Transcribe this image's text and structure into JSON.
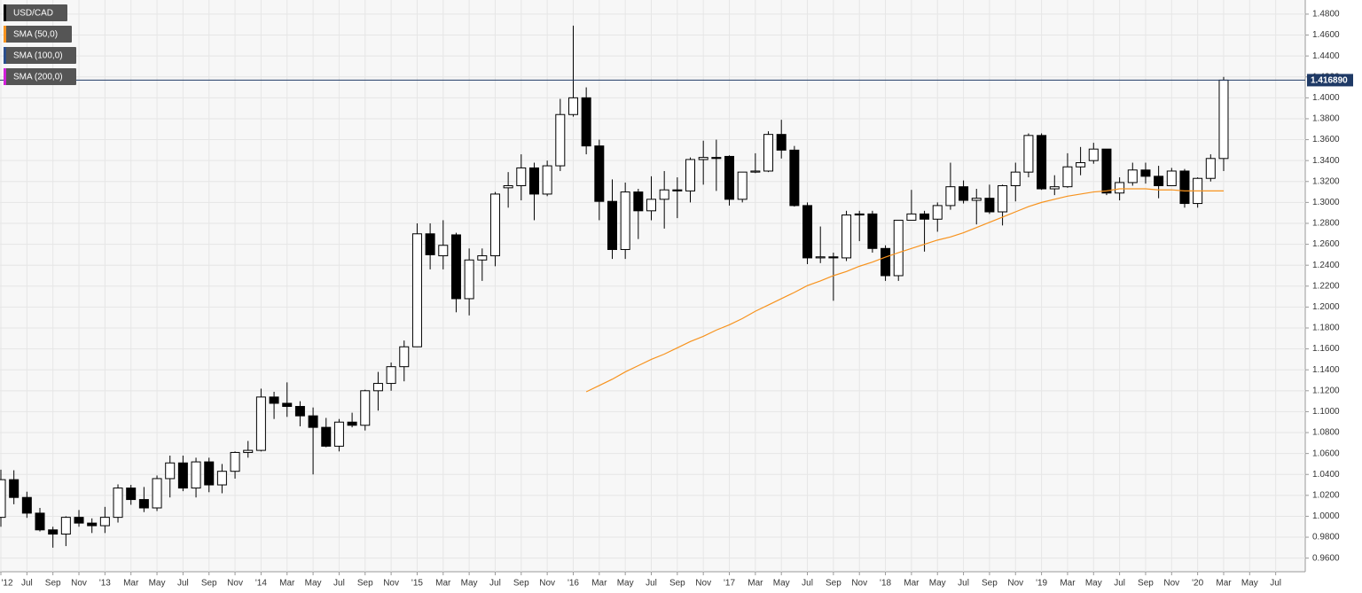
{
  "chart_data": {
    "type": "candlestick",
    "categories": [
      "'12",
      null,
      "Jul",
      null,
      "Sep",
      null,
      "Nov",
      null,
      "'13",
      null,
      "Mar",
      null,
      "May",
      null,
      "Jul",
      null,
      "Sep",
      null,
      "Nov",
      null,
      "'14",
      null,
      "Mar",
      null,
      "May",
      null,
      "Jul",
      null,
      "Sep",
      null,
      "Nov",
      null,
      "'15",
      null,
      "Mar",
      null,
      "May",
      null,
      "Jul",
      null,
      "Sep",
      null,
      "Nov",
      null,
      "'16",
      null,
      "Mar",
      null,
      "May",
      null,
      "Jul",
      null,
      "Sep",
      null,
      "Nov",
      null,
      "'17",
      null,
      "Mar",
      null,
      "May",
      null,
      "Jul",
      null,
      "Sep",
      null,
      "Nov",
      null,
      "'18",
      null,
      "Mar",
      null,
      "May",
      null,
      "Jul",
      null,
      "Sep",
      null,
      "Nov",
      null,
      "'19",
      null,
      "Mar",
      null,
      "May",
      null,
      "Jul",
      null,
      "Sep",
      null,
      "Nov",
      null,
      "'20",
      null,
      "Mar",
      null,
      "May",
      null,
      "Jul"
    ],
    "series": [
      {
        "name": "USD/CAD",
        "color": "#000000",
        "open": [
          0.999,
          1.035,
          1.018,
          1.003,
          0.987,
          0.983,
          0.999,
          0.9935,
          0.991,
          0.999,
          1.027,
          1.016,
          1.008,
          1.036,
          1.051,
          1.027,
          1.052,
          1.03,
          1.043,
          1.061,
          1.063,
          1.114,
          1.108,
          1.105,
          1.096,
          1.085,
          1.067,
          1.09,
          1.087,
          1.12,
          1.127,
          1.143,
          1.162,
          1.27,
          1.249,
          1.269,
          1.208,
          1.245,
          1.249,
          1.314,
          1.316,
          1.333,
          1.308,
          1.335,
          1.384,
          1.4,
          1.354,
          1.301,
          1.255,
          1.31,
          1.292,
          1.303,
          1.312,
          1.311,
          1.341,
          1.343,
          1.344,
          1.303,
          1.329,
          1.33,
          1.365,
          1.35,
          1.297,
          1.247,
          1.248,
          1.247,
          1.289,
          1.289,
          1.256,
          1.23,
          1.283,
          1.289,
          1.284,
          1.297,
          1.315,
          1.302,
          1.304,
          1.291,
          1.316,
          1.329,
          1.364,
          1.313,
          1.315,
          1.334,
          1.34,
          1.351,
          1.309,
          1.319,
          1.331,
          1.325,
          1.316,
          1.33,
          1.299,
          1.323,
          1.342,
          null,
          null,
          null,
          null
        ],
        "high": [
          1.0445,
          1.044,
          1.0235,
          1.008,
          0.99,
          1.0,
          1.006,
          0.998,
          1.009,
          1.0305,
          1.03,
          1.028,
          1.039,
          1.058,
          1.058,
          1.056,
          1.056,
          1.05,
          1.062,
          1.072,
          1.122,
          1.119,
          1.128,
          1.11,
          1.104,
          1.094,
          1.093,
          1.099,
          1.121,
          1.138,
          1.147,
          1.168,
          1.28,
          1.28,
          1.283,
          1.271,
          1.256,
          1.256,
          1.31,
          1.329,
          1.346,
          1.338,
          1.34,
          1.399,
          1.469,
          1.41,
          1.36,
          1.322,
          1.319,
          1.313,
          1.325,
          1.33,
          1.324,
          1.343,
          1.359,
          1.36,
          1.345,
          1.329,
          1.347,
          1.368,
          1.379,
          1.354,
          1.3,
          1.277,
          1.252,
          1.292,
          1.292,
          1.292,
          1.259,
          1.283,
          1.312,
          1.292,
          1.3,
          1.338,
          1.321,
          1.313,
          1.317,
          1.317,
          1.338,
          1.366,
          1.366,
          1.326,
          1.347,
          1.353,
          1.357,
          1.351,
          1.324,
          1.338,
          1.338,
          1.335,
          1.333,
          1.332,
          1.324,
          1.346,
          1.42,
          null,
          null,
          null,
          null
        ],
        "low": [
          0.99,
          1.0115,
          0.9985,
          0.9855,
          0.97,
          0.9715,
          0.99,
          0.984,
          0.984,
          0.994,
          1.011,
          1.004,
          1.005,
          1.018,
          1.024,
          1.018,
          1.023,
          1.022,
          1.036,
          1.056,
          1.062,
          1.093,
          1.095,
          1.086,
          1.04,
          1.066,
          1.062,
          1.085,
          1.082,
          1.101,
          1.12,
          1.129,
          1.162,
          1.236,
          1.236,
          1.195,
          1.192,
          1.225,
          1.239,
          1.295,
          1.302,
          1.283,
          1.306,
          1.33,
          1.382,
          1.346,
          1.283,
          1.246,
          1.246,
          1.265,
          1.283,
          1.275,
          1.285,
          1.3,
          1.317,
          1.311,
          1.297,
          1.3,
          1.328,
          1.329,
          1.342,
          1.296,
          1.241,
          1.242,
          1.206,
          1.244,
          1.263,
          1.252,
          1.225,
          1.225,
          1.283,
          1.253,
          1.272,
          1.293,
          1.299,
          1.279,
          1.289,
          1.278,
          1.301,
          1.324,
          1.312,
          1.307,
          1.314,
          1.326,
          1.337,
          1.307,
          1.302,
          1.316,
          1.318,
          1.304,
          1.316,
          1.295,
          1.295,
          1.32,
          1.33,
          null,
          null,
          null,
          null
        ],
        "close": [
          1.035,
          1.018,
          1.003,
          0.987,
          0.983,
          0.999,
          0.9935,
          0.991,
          0.999,
          1.027,
          1.016,
          1.008,
          1.036,
          1.051,
          1.027,
          1.052,
          1.03,
          1.043,
          1.061,
          1.063,
          1.114,
          1.108,
          1.105,
          1.096,
          1.085,
          1.067,
          1.09,
          1.087,
          1.12,
          1.127,
          1.143,
          1.162,
          1.27,
          1.25,
          1.259,
          1.208,
          1.245,
          1.249,
          1.308,
          1.316,
          1.333,
          1.308,
          1.335,
          1.384,
          1.4,
          1.354,
          1.301,
          1.255,
          1.31,
          1.292,
          1.303,
          1.312,
          1.311,
          1.341,
          1.343,
          1.342,
          1.303,
          1.329,
          1.33,
          1.365,
          1.35,
          1.297,
          1.247,
          1.248,
          1.247,
          1.288,
          1.288,
          1.256,
          1.23,
          1.283,
          1.289,
          1.284,
          1.297,
          1.315,
          1.302,
          1.304,
          1.291,
          1.316,
          1.329,
          1.364,
          1.313,
          1.315,
          1.334,
          1.338,
          1.351,
          1.309,
          1.319,
          1.331,
          1.325,
          1.316,
          1.33,
          1.299,
          1.323,
          1.342,
          1.4169,
          null,
          null,
          null,
          null
        ]
      },
      {
        "name": "SMA (50,0)",
        "color": "#f7931e",
        "values": [
          null,
          null,
          null,
          null,
          null,
          null,
          null,
          null,
          null,
          null,
          null,
          null,
          null,
          null,
          null,
          null,
          null,
          null,
          null,
          null,
          null,
          null,
          null,
          null,
          null,
          null,
          null,
          null,
          null,
          null,
          null,
          null,
          null,
          null,
          null,
          null,
          null,
          null,
          null,
          null,
          null,
          null,
          null,
          null,
          null,
          1.119,
          1.125,
          1.131,
          1.138,
          1.144,
          1.15,
          1.155,
          1.161,
          1.167,
          1.172,
          1.178,
          1.183,
          1.189,
          1.196,
          1.202,
          1.208,
          1.214,
          1.2205,
          1.225,
          1.23,
          1.234,
          1.239,
          1.243,
          1.2477,
          1.252,
          1.256,
          1.26,
          1.264,
          1.267,
          1.271,
          1.276,
          1.281,
          1.286,
          1.291,
          1.296,
          1.3,
          1.303,
          1.306,
          1.308,
          1.31,
          1.311,
          1.313,
          1.313,
          1.313,
          1.312,
          1.312,
          1.311,
          1.311,
          1.311,
          1.311,
          null,
          null,
          null,
          null
        ]
      },
      {
        "name": "SMA (100,0)",
        "color": "#2b4e8c"
      },
      {
        "name": "SMA (200,0)",
        "color": "#d020d8"
      }
    ],
    "last_price": {
      "value": 1.41689,
      "label": "1.416890",
      "color": "#1f3a66"
    },
    "ylim": [
      0.947,
      1.4935
    ],
    "yticks": [
      {
        "value": 0.96,
        "label": "0.9600"
      },
      {
        "value": 0.98,
        "label": "0.9800"
      },
      {
        "value": 1.0,
        "label": "1.0000"
      },
      {
        "value": 1.02,
        "label": "1.0200"
      },
      {
        "value": 1.04,
        "label": "1.0400"
      },
      {
        "value": 1.06,
        "label": "1.0600"
      },
      {
        "value": 1.08,
        "label": "1.0800"
      },
      {
        "value": 1.1,
        "label": "1.1000"
      },
      {
        "value": 1.12,
        "label": "1.1200"
      },
      {
        "value": 1.14,
        "label": "1.1400"
      },
      {
        "value": 1.16,
        "label": "1.1600"
      },
      {
        "value": 1.18,
        "label": "1.1800"
      },
      {
        "value": 1.2,
        "label": "1.2000"
      },
      {
        "value": 1.22,
        "label": "1.2200"
      },
      {
        "value": 1.24,
        "label": "1.2400"
      },
      {
        "value": 1.26,
        "label": "1.2600"
      },
      {
        "value": 1.28,
        "label": "1.2800"
      },
      {
        "value": 1.3,
        "label": "1.3000"
      },
      {
        "value": 1.32,
        "label": "1.3200"
      },
      {
        "value": 1.34,
        "label": "1.3400"
      },
      {
        "value": 1.36,
        "label": "1.3600"
      },
      {
        "value": 1.38,
        "label": "1.3800"
      },
      {
        "value": 1.4,
        "label": "1.4000"
      },
      {
        "value": 1.42,
        "label": "1.4200"
      },
      {
        "value": 1.44,
        "label": "1.4400"
      },
      {
        "value": 1.46,
        "label": "1.4600"
      },
      {
        "value": 1.48,
        "label": "1.4800"
      }
    ],
    "grid": true
  }
}
